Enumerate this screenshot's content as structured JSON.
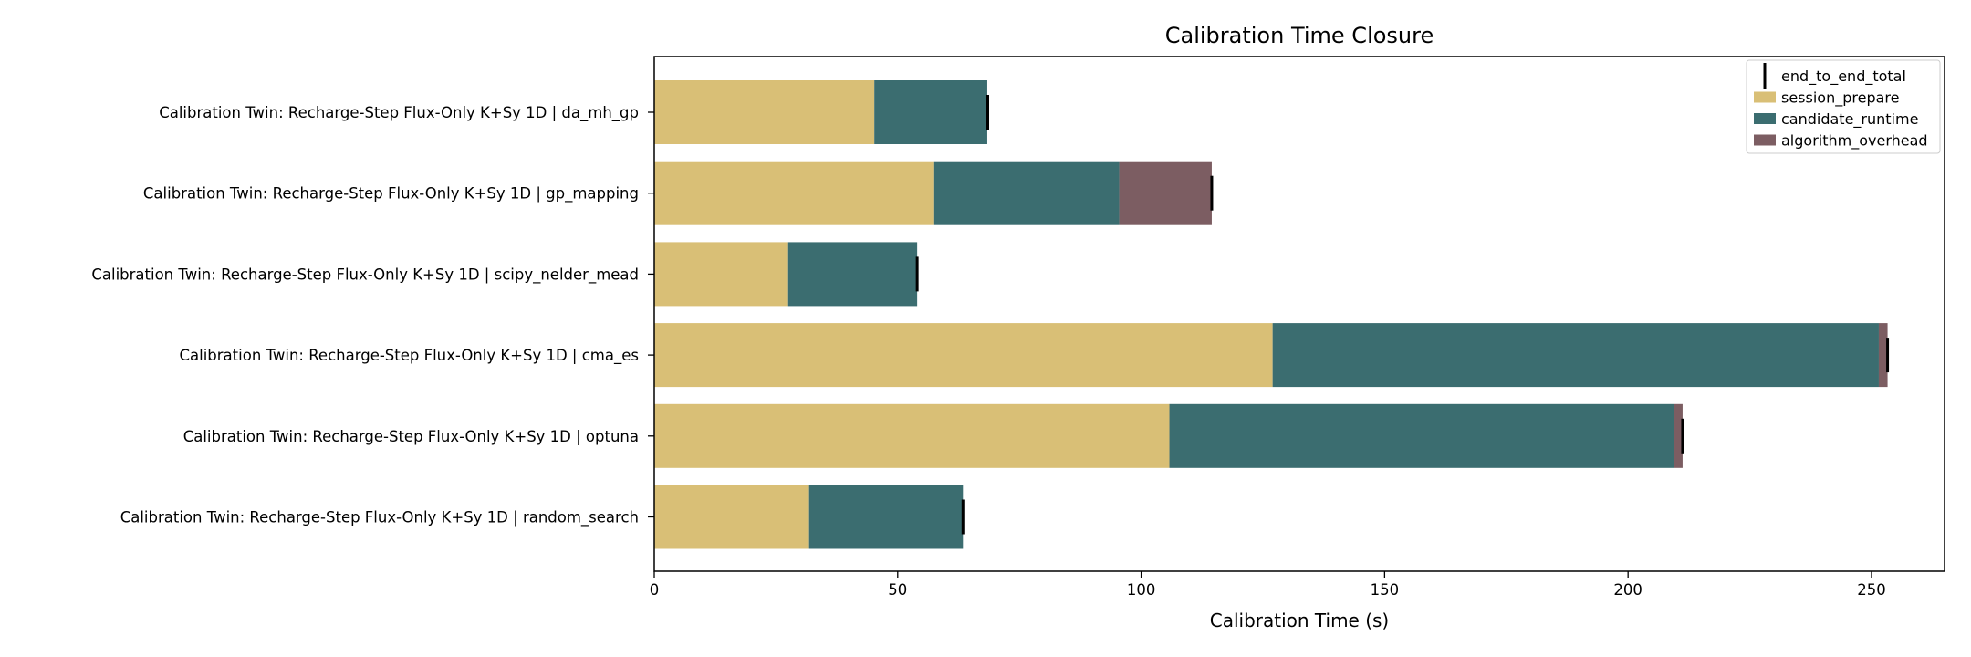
{
  "chart_data": {
    "type": "bar",
    "orientation": "horizontal",
    "stacked": true,
    "title": "Calibration Time Closure",
    "xlabel": "Calibration Time (s)",
    "ylabel": "",
    "xlim": [
      0,
      265
    ],
    "xticks": [
      0,
      50,
      100,
      150,
      200,
      250
    ],
    "grid": false,
    "legend_position": "top-right",
    "categories": [
      "Calibration Twin: Recharge-Step Flux-Only K+Sy 1D | da_mh_gp",
      "Calibration Twin: Recharge-Step Flux-Only K+Sy 1D | gp_mapping",
      "Calibration Twin: Recharge-Step Flux-Only K+Sy 1D | scipy_nelder_mead",
      "Calibration Twin: Recharge-Step Flux-Only K+Sy 1D | cma_es",
      "Calibration Twin: Recharge-Step Flux-Only K+Sy 1D | optuna",
      "Calibration Twin: Recharge-Step Flux-Only K+Sy 1D | random_search"
    ],
    "series": [
      {
        "name": "session_prepare",
        "color": "#d9bf76",
        "values": [
          45.2,
          57.5,
          27.5,
          127.0,
          105.8,
          31.8
        ]
      },
      {
        "name": "candidate_runtime",
        "color": "#3b6d70",
        "values": [
          23.2,
          38.0,
          26.5,
          124.5,
          103.6,
          31.6
        ]
      },
      {
        "name": "algorithm_overhead",
        "color": "#7c5d62",
        "values": [
          0.0,
          19.0,
          0.0,
          1.8,
          1.8,
          0.0
        ]
      }
    ],
    "end_to_end_total": {
      "name": "end_to_end_total",
      "color": "#000000",
      "values": [
        68.5,
        114.5,
        54.0,
        253.3,
        211.2,
        63.4
      ]
    }
  }
}
